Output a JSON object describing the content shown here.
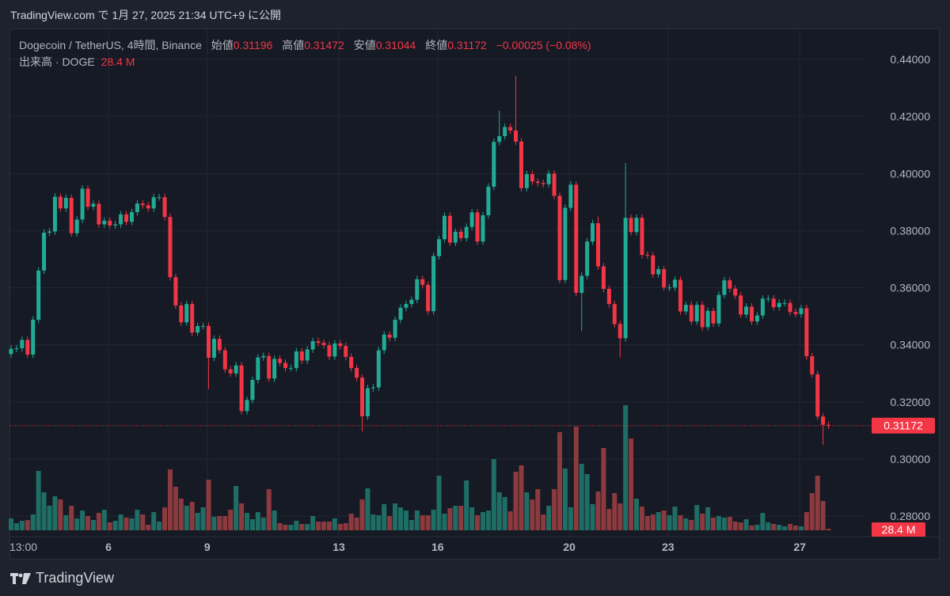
{
  "header": {
    "published": "TradingView.com で 1月 27, 2025 21:34 UTC+9 に公開"
  },
  "legend": {
    "symbol": "Dogecoin / TetherUS, 4時間, Binance",
    "open_label": "始値",
    "open": "0.31196",
    "high_label": "高値",
    "high": "0.31472",
    "low_label": "安値",
    "low": "0.31044",
    "close_label": "終値",
    "close": "0.31172",
    "change": "−0.00025 (−0.08%)",
    "volume_label": "出来高 · DOGE",
    "volume": "28.4 M"
  },
  "footer": {
    "brand": "TradingView"
  },
  "colors": {
    "up": "#22ab94",
    "down": "#f23645",
    "vol_up": "#1f6e66",
    "vol_down": "#8c3a3e",
    "grid": "#232733"
  },
  "chart_data": {
    "type": "candlestick",
    "title": "Dogecoin / TetherUS, 4時間, Binance",
    "xlabel": "",
    "ylabel": "",
    "ylim": [
      0.27,
      0.44
    ],
    "y_ticks": [
      "0.44000",
      "0.42000",
      "0.40000",
      "0.38000",
      "0.36000",
      "0.34000",
      "0.32000",
      "0.30000",
      "0.28000"
    ],
    "x_ticks": [
      {
        "label": "13:00",
        "index": 0
      },
      {
        "label": "6",
        "index": 17.75
      },
      {
        "label": "9",
        "index": 35.75
      },
      {
        "label": "13",
        "index": 59.75
      },
      {
        "label": "16",
        "index": 77.75
      },
      {
        "label": "20",
        "index": 101.75
      },
      {
        "label": "23",
        "index": 119.75
      },
      {
        "label": "27",
        "index": 143.75
      }
    ],
    "first_open": 0.3368,
    "close": [
      0.3386,
      0.3388,
      0.3417,
      0.3366,
      0.3488,
      0.366,
      0.3793,
      0.3797,
      0.3919,
      0.3878,
      0.3915,
      0.3791,
      0.3839,
      0.3947,
      0.3884,
      0.3894,
      0.3822,
      0.3835,
      0.3818,
      0.3822,
      0.3857,
      0.3831,
      0.3865,
      0.3895,
      0.3889,
      0.3878,
      0.3917,
      0.3917,
      0.3848,
      0.3637,
      0.3538,
      0.3479,
      0.3543,
      0.3443,
      0.3466,
      0.3466,
      0.3355,
      0.3421,
      0.3381,
      0.3314,
      0.33,
      0.3328,
      0.3168,
      0.3207,
      0.3277,
      0.3356,
      0.3361,
      0.3282,
      0.3351,
      0.3337,
      0.3319,
      0.3319,
      0.3377,
      0.3345,
      0.3384,
      0.3413,
      0.3407,
      0.3399,
      0.3359,
      0.3405,
      0.3396,
      0.3358,
      0.3319,
      0.3285,
      0.315,
      0.3248,
      0.3251,
      0.3381,
      0.3436,
      0.3425,
      0.3488,
      0.353,
      0.3543,
      0.3558,
      0.363,
      0.361,
      0.3518,
      0.3711,
      0.377,
      0.3852,
      0.3758,
      0.3796,
      0.3774,
      0.3813,
      0.3864,
      0.3762,
      0.3854,
      0.3954,
      0.4111,
      0.4131,
      0.4163,
      0.4151,
      0.4112,
      0.3949,
      0.3998,
      0.3972,
      0.3967,
      0.3963,
      0.4,
      0.3922,
      0.3627,
      0.388,
      0.3961,
      0.3582,
      0.3642,
      0.3762,
      0.3826,
      0.3675,
      0.3596,
      0.3543,
      0.3473,
      0.3423,
      0.3845,
      0.3795,
      0.3845,
      0.3715,
      0.3713,
      0.3647,
      0.3665,
      0.3601,
      0.3601,
      0.3628,
      0.3517,
      0.354,
      0.3482,
      0.354,
      0.3462,
      0.3519,
      0.3475,
      0.3575,
      0.3626,
      0.3597,
      0.3573,
      0.3506,
      0.3534,
      0.3482,
      0.3503,
      0.3562,
      0.3562,
      0.3532,
      0.3547,
      0.3547,
      0.3515,
      0.3508,
      0.3528,
      0.336,
      0.3297,
      0.3149,
      0.312,
      0.31172
    ],
    "default_wick": 0.0012,
    "wick_overrides": [
      {
        "index": 36,
        "low": 0.3245
      },
      {
        "index": 64,
        "low": 0.3097
      },
      {
        "index": 89,
        "high": 0.422
      },
      {
        "index": 92,
        "high": 0.4342
      },
      {
        "index": 104,
        "low": 0.3448
      },
      {
        "index": 107,
        "high": 0.385
      },
      {
        "index": 111,
        "low": 0.3356
      },
      {
        "index": 112,
        "high": 0.4037
      },
      {
        "index": 148,
        "low": 0.305
      }
    ],
    "volume_unit": "M",
    "volume": [
      225,
      135,
      180,
      195,
      300,
      1125,
      720,
      465,
      645,
      585,
      285,
      465,
      225,
      375,
      270,
      195,
      330,
      390,
      150,
      180,
      300,
      240,
      225,
      390,
      300,
      105,
      345,
      165,
      435,
      1155,
      825,
      600,
      465,
      540,
      330,
      435,
      960,
      255,
      270,
      270,
      390,
      840,
      510,
      330,
      210,
      345,
      240,
      780,
      375,
      135,
      105,
      105,
      180,
      120,
      120,
      270,
      165,
      165,
      165,
      225,
      120,
      135,
      315,
      240,
      585,
      795,
      300,
      285,
      495,
      270,
      510,
      435,
      375,
      195,
      375,
      285,
      285,
      390,
      1035,
      315,
      420,
      465,
      465,
      945,
      435,
      285,
      345,
      375,
      1350,
      720,
      630,
      360,
      1110,
      1230,
      720,
      585,
      780,
      300,
      465,
      780,
      1860,
      1170,
      435,
      1965,
      1260,
      1065,
      495,
      735,
      1560,
      405,
      705,
      510,
      2370,
      1740,
      600,
      450,
      270,
      300,
      345,
      375,
      285,
      450,
      285,
      225,
      195,
      480,
      315,
      435,
      240,
      270,
      240,
      255,
      165,
      150,
      210,
      90,
      105,
      330,
      150,
      120,
      105,
      75,
      120,
      90,
      75,
      345,
      705,
      1035,
      555,
      28.4
    ],
    "last_price": 0.31172,
    "last_price_label": "0.31172",
    "last_volume_label": "28.4 M"
  }
}
